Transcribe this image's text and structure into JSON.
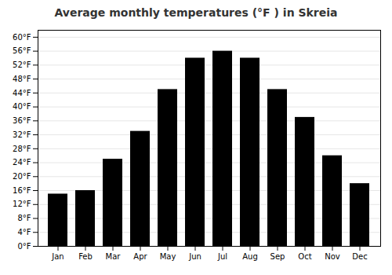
{
  "chart_data": {
    "type": "bar",
    "title": "Average monthly temperatures (°F ) in Skreia",
    "categories": [
      "Jan",
      "Feb",
      "Mar",
      "Apr",
      "May",
      "Jun",
      "Jul",
      "Aug",
      "Sep",
      "Oct",
      "Nov",
      "Dec"
    ],
    "values": [
      15,
      16,
      25,
      33,
      45,
      54,
      56,
      54,
      45,
      37,
      26,
      18
    ],
    "ylim": [
      0,
      62
    ],
    "yticks": [
      {
        "value": 0,
        "label": "0°F"
      },
      {
        "value": 4,
        "label": "4°F"
      },
      {
        "value": 8,
        "label": "8°F"
      },
      {
        "value": 12,
        "label": "12°F"
      },
      {
        "value": 16,
        "label": "16°F"
      },
      {
        "value": 20,
        "label": "20°F"
      },
      {
        "value": 24,
        "label": "24°F"
      },
      {
        "value": 28,
        "label": "28°F"
      },
      {
        "value": 32,
        "label": "32°F"
      },
      {
        "value": 36,
        "label": "36°F"
      },
      {
        "value": 40,
        "label": "40°F"
      },
      {
        "value": 44,
        "label": "44°F"
      },
      {
        "value": 48,
        "label": "48°F"
      },
      {
        "value": 52,
        "label": "52°F"
      },
      {
        "value": 56,
        "label": "56°F"
      },
      {
        "value": 60,
        "label": "60°F"
      }
    ],
    "grid": true
  }
}
